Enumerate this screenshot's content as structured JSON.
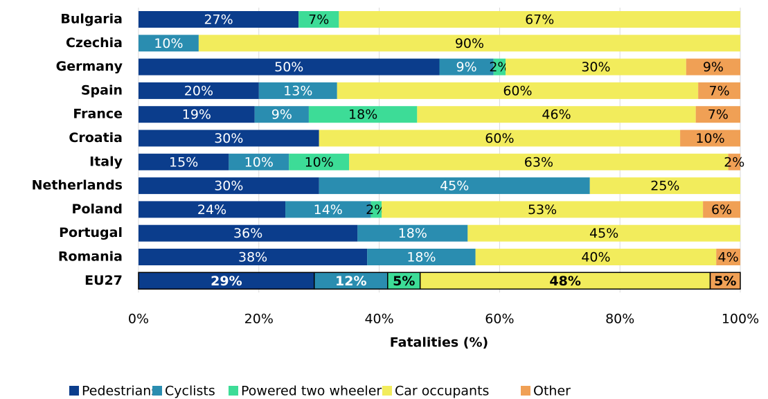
{
  "chart_data": {
    "type": "stacked-bar-horizontal",
    "categories": [
      "Bulgaria",
      "Czechia",
      "Germany",
      "Spain",
      "France",
      "Croatia",
      "Italy",
      "Netherlands",
      "Poland",
      "Portugal",
      "Romania",
      "EU27"
    ],
    "xlabel": "Fatalities (%)",
    "xlim": [
      0,
      100
    ],
    "xticks": [
      {
        "value": 0,
        "label": "0%"
      },
      {
        "value": 20,
        "label": "20%"
      },
      {
        "value": 40,
        "label": "40%"
      },
      {
        "value": 60,
        "label": "60%"
      },
      {
        "value": 80,
        "label": "80%"
      },
      {
        "value": 100,
        "label": "100%"
      }
    ],
    "grid": true,
    "legend": "bottom",
    "series": [
      {
        "name": "Pedestrians",
        "color": "#0b3d8c",
        "values": [
          26.6,
          null,
          50,
          20,
          19.3,
          30,
          15,
          30,
          24.4,
          36.4,
          38,
          29.2
        ],
        "value_labels": [
          "27%",
          null,
          "50%",
          "20%",
          "19%",
          "30%",
          "15%",
          "30%",
          "24%",
          "36%",
          "38%",
          "29%"
        ]
      },
      {
        "name": "Cyclists",
        "color": "#2a8db0",
        "values": [
          null,
          10,
          9,
          13,
          9,
          null,
          10,
          45,
          14.2,
          18.3,
          18,
          12.2
        ],
        "value_labels": [
          null,
          "10%",
          "9%",
          "13%",
          "9%",
          null,
          "10%",
          "45%",
          "14%",
          "18%",
          "18%",
          "12%"
        ]
      },
      {
        "name": "Powered two wheelers",
        "color": "#3ddc97",
        "values": [
          6.7,
          null,
          2,
          null,
          18,
          null,
          10,
          null,
          1.8,
          null,
          null,
          5.4
        ],
        "value_labels": [
          "7%",
          null,
          "2%",
          null,
          "18%",
          null,
          "10%",
          null,
          "2%",
          null,
          null,
          "5%"
        ]
      },
      {
        "name": "Car occupants",
        "color": "#f2ec5c",
        "values": [
          66.7,
          90,
          30,
          60,
          46.3,
          60,
          63,
          25,
          53.4,
          45.3,
          40,
          48.2
        ],
        "value_labels": [
          "67%",
          "90%",
          "30%",
          "60%",
          "46%",
          "60%",
          "63%",
          "25%",
          "53%",
          "45%",
          "40%",
          "48%"
        ]
      },
      {
        "name": "Other",
        "color": "#f0a055",
        "values": [
          null,
          null,
          9,
          7,
          7.4,
          10,
          2,
          null,
          6.2,
          null,
          4,
          5
        ],
        "value_labels": [
          null,
          null,
          "9%",
          "7%",
          "7%",
          "10%",
          "2%",
          null,
          "6%",
          null,
          "4%",
          "5%"
        ]
      }
    ]
  }
}
